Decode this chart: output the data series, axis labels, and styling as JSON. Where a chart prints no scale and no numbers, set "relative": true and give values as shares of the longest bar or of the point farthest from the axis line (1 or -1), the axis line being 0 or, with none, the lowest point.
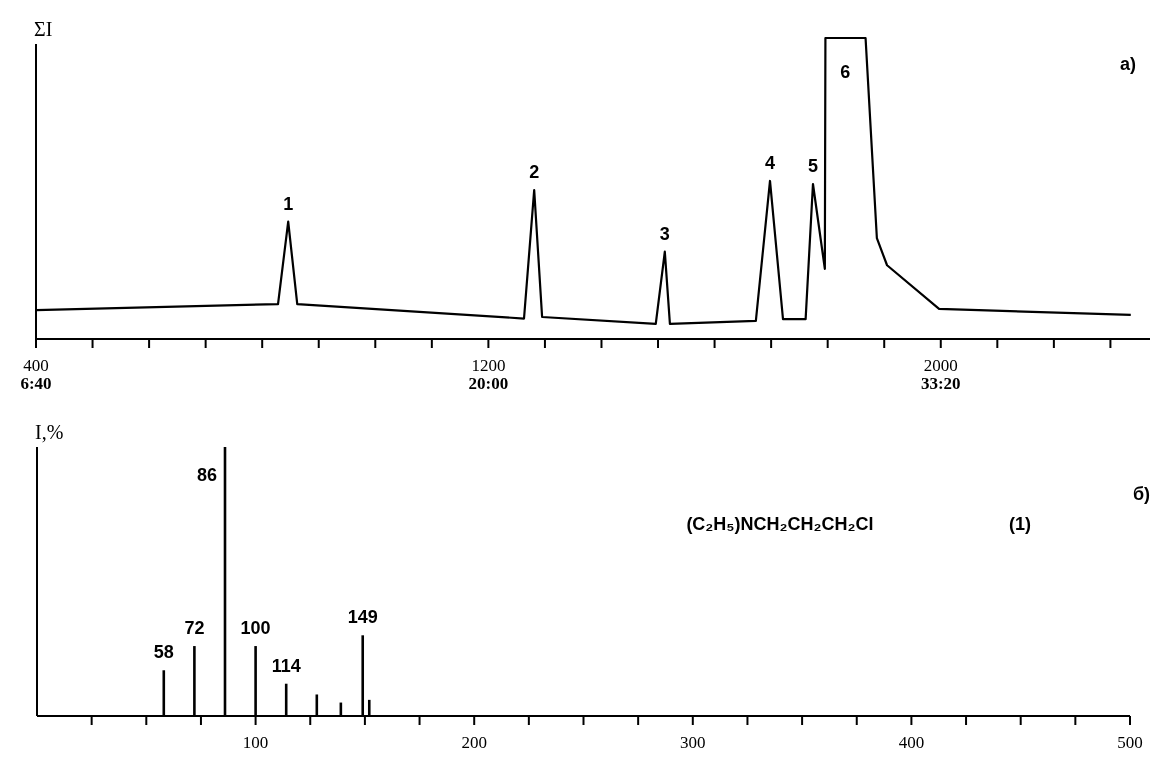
{
  "chart_data": [
    {
      "type": "line",
      "ylabel": "ΣI",
      "relative": true,
      "xlim": [
        400,
        2370
      ],
      "x2lim": [
        400,
        2370
      ],
      "x2ticks": [
        {
          "value": 400,
          "label": "6:40"
        },
        {
          "value": 1200,
          "label": "20:00"
        },
        {
          "value": 2000,
          "label": "33:20"
        }
      ],
      "xticks": [
        400,
        {
          "value": 500,
          "label": null
        },
        {
          "value": 600,
          "label": null
        },
        {
          "value": 700,
          "label": null
        },
        {
          "value": 800,
          "label": null
        },
        {
          "value": 900,
          "label": null
        },
        {
          "value": 1000,
          "label": null
        },
        {
          "value": 1100,
          "label": null
        },
        1200,
        {
          "value": 1300,
          "label": null
        },
        {
          "value": 1400,
          "label": null
        },
        {
          "value": 1500,
          "label": null
        },
        {
          "value": 1600,
          "label": null
        },
        {
          "value": 1700,
          "label": null
        },
        {
          "value": 1800,
          "label": null
        },
        {
          "value": 1900,
          "label": null
        },
        2000,
        {
          "value": 2100,
          "label": null
        },
        {
          "value": 2200,
          "label": null
        },
        {
          "value": 2300,
          "label": null
        }
      ],
      "series": [
        {
          "color": "#000000",
          "x": [
            400,
            828,
            846,
            862,
            1263,
            1281,
            1295,
            1496,
            1512,
            1521,
            1673,
            1698,
            1721,
            1761,
            1774,
            1795,
            1796,
            1867,
            1887,
            1905,
            1997,
            2336
          ],
          "values": [
            0.096,
            0.116,
            0.39,
            0.116,
            0.068,
            0.495,
            0.073,
            0.05,
            0.29,
            0.05,
            0.06,
            0.525,
            0.066,
            0.066,
            0.515,
            0.233,
            1,
            1,
            0.335,
            0.245,
            0.1,
            0.08
          ]
        }
      ],
      "annotations": [
        {
          "text": "1",
          "x": 846,
          "y": 0.39
        },
        {
          "text": "2",
          "x": 1281,
          "y": 0.495
        },
        {
          "text": "3",
          "x": 1512,
          "y": 0.29
        },
        {
          "text": "4",
          "x": 1698,
          "y": 0.525
        },
        {
          "text": "5",
          "x": 1774,
          "y": 0.515
        },
        {
          "text": "6",
          "x": 1831,
          "y": 1
        },
        "a)"
      ]
    },
    {
      "type": "bar",
      "ylabel": "I,%",
      "relative": true,
      "xlim": [
        0,
        500
      ],
      "xticks": [
        {
          "value": 25,
          "label": null
        },
        {
          "value": 50,
          "label": null
        },
        {
          "value": 75,
          "label": null
        },
        100,
        {
          "value": 125,
          "label": null
        },
        {
          "value": 150,
          "label": null
        },
        {
          "value": 175,
          "label": null
        },
        200,
        {
          "value": 225,
          "label": null
        },
        {
          "value": 250,
          "label": null
        },
        {
          "value": 275,
          "label": null
        },
        300,
        {
          "value": 325,
          "label": null
        },
        {
          "value": 350,
          "label": null
        },
        {
          "value": 375,
          "label": null
        },
        400,
        {
          "value": 425,
          "label": null
        },
        {
          "value": 450,
          "label": null
        },
        {
          "value": 475,
          "label": null
        },
        500
      ],
      "x": [
        58,
        72,
        86,
        100,
        114,
        128,
        139,
        149,
        152
      ],
      "values": [
        0.17,
        0.26,
        1,
        0.26,
        0.12,
        0.08,
        0.05,
        0.3,
        0.06
      ],
      "color": "#000000",
      "annotations": [
        {
          "text": "58",
          "x": 58,
          "y": 0.17
        },
        {
          "text": "72",
          "x": 72,
          "y": 0.26
        },
        {
          "text": "86",
          "x": 86,
          "y": 0.83
        },
        {
          "text": "100",
          "x": 100,
          "y": 0.26
        },
        {
          "text": "114",
          "x": 114,
          "y": 0.12
        },
        {
          "text": "149",
          "x": 149,
          "y": 0.3
        },
        "(C₂H₅)NCH₂CH₂CH₂Cl",
        "(1)",
        "б)"
      ]
    }
  ]
}
